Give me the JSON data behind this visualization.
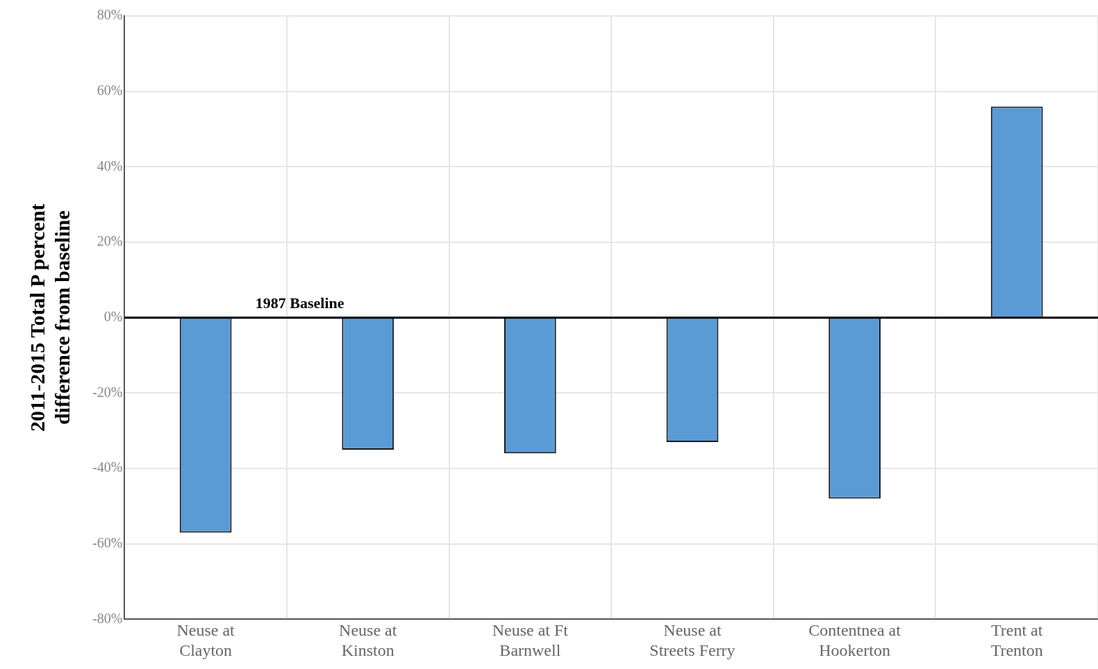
{
  "chart_data": {
    "type": "bar",
    "ylabel": "2011-2015 Total P percent difference from baseline",
    "categories": [
      "Neuse at Clayton",
      "Neuse at Kinston",
      "Neuse at Ft Barnwell",
      "Neuse at Streets Ferry",
      "Contentnea at Hookerton",
      "Trent at Trenton"
    ],
    "values": [
      -57,
      -35,
      -36,
      -33,
      -48,
      56
    ],
    "color": "#5b9bd5",
    "ylim": [
      -80,
      80
    ],
    "yticks": [
      {
        "value": -80,
        "label": "-80%"
      },
      {
        "value": -60,
        "label": "-60%"
      },
      {
        "value": -40,
        "label": "-40%"
      },
      {
        "value": -20,
        "label": "-20%"
      },
      {
        "value": 0,
        "label": "0%"
      },
      {
        "value": 20,
        "label": "20%"
      },
      {
        "value": 40,
        "label": "40%"
      },
      {
        "value": 60,
        "label": "60%"
      },
      {
        "value": 80,
        "label": "80%"
      }
    ],
    "ref_lines": [
      {
        "axis": "y",
        "value": 0,
        "label": "1987 Baseline",
        "color": "#000000"
      }
    ],
    "grid": true,
    "legend": false
  }
}
